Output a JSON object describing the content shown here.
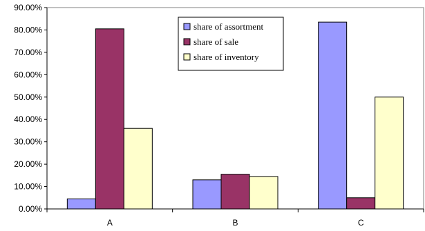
{
  "chart_data": {
    "type": "bar",
    "categories": [
      "A",
      "B",
      "C"
    ],
    "series": [
      {
        "name": "share of assortment",
        "values": [
          4.5,
          13.0,
          83.5
        ],
        "color": "#9999ff"
      },
      {
        "name": "share of sale",
        "values": [
          80.5,
          15.5,
          5.0
        ],
        "color": "#993366"
      },
      {
        "name": "share of inventory",
        "values": [
          36.0,
          14.5,
          50.0
        ],
        "color": "#ffffcc"
      }
    ],
    "ylim": [
      0,
      90
    ],
    "y_ticks": [
      "0.00%",
      "10.00%",
      "20.00%",
      "30.00%",
      "40.00%",
      "50.00%",
      "60.00%",
      "70.00%",
      "80.00%",
      "90.00%"
    ],
    "y_unit": "percent",
    "grid": false,
    "legend_position": "top-center",
    "title": "",
    "xlabel": "",
    "ylabel": ""
  }
}
